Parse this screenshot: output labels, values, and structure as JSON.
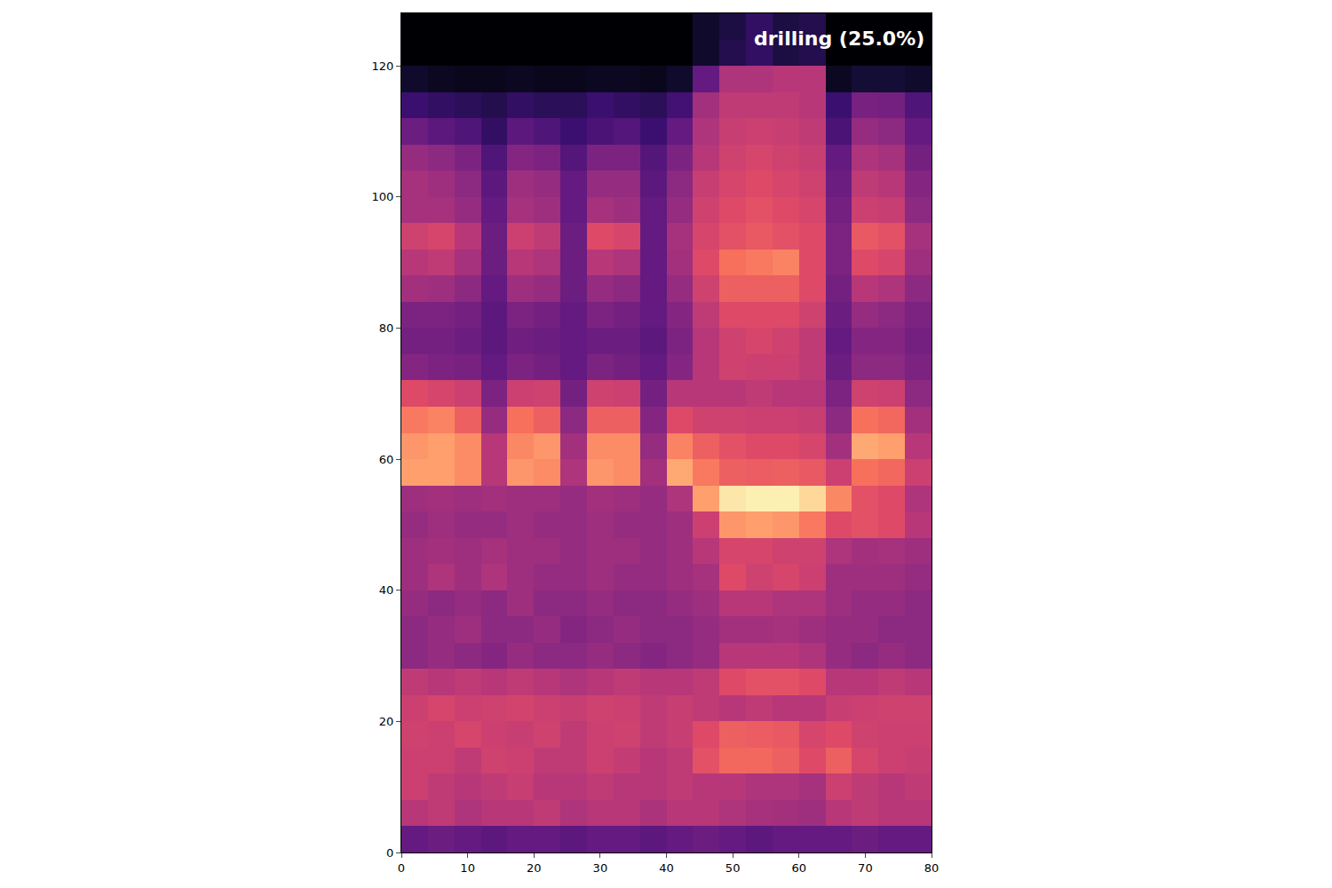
{
  "chart_data": {
    "type": "heatmap",
    "annotations": [
      {
        "text": "drilling (25.0%)"
      }
    ],
    "xlim": [
      0,
      80
    ],
    "ylim": [
      0,
      128
    ],
    "xticks": [
      0,
      10,
      20,
      30,
      40,
      50,
      60,
      70,
      80
    ],
    "yticks": [
      0,
      20,
      40,
      60,
      80,
      100,
      120
    ],
    "zlim": [
      0,
      1
    ],
    "x": [
      2,
      6,
      10,
      14,
      18,
      22,
      26,
      30,
      34,
      38,
      42,
      46,
      50,
      54,
      58,
      62,
      66,
      70,
      74,
      78
    ],
    "y": [
      2,
      6,
      10,
      14,
      18,
      22,
      26,
      30,
      34,
      38,
      42,
      46,
      50,
      54,
      58,
      62,
      66,
      70,
      74,
      78,
      82,
      86,
      90,
      94,
      98,
      102,
      106,
      110,
      114,
      118,
      122,
      126
    ],
    "z": [
      [
        0.3,
        0.32,
        0.3,
        0.28,
        0.3,
        0.3,
        0.28,
        0.3,
        0.3,
        0.28,
        0.3,
        0.32,
        0.3,
        0.28,
        0.3,
        0.3,
        0.3,
        0.32,
        0.3,
        0.3
      ],
      [
        0.5,
        0.52,
        0.48,
        0.5,
        0.5,
        0.52,
        0.48,
        0.5,
        0.5,
        0.47,
        0.5,
        0.5,
        0.48,
        0.46,
        0.45,
        0.44,
        0.5,
        0.52,
        0.5,
        0.5
      ],
      [
        0.55,
        0.52,
        0.5,
        0.52,
        0.54,
        0.5,
        0.5,
        0.52,
        0.5,
        0.5,
        0.52,
        0.5,
        0.5,
        0.48,
        0.48,
        0.46,
        0.55,
        0.52,
        0.5,
        0.52
      ],
      [
        0.55,
        0.55,
        0.52,
        0.56,
        0.55,
        0.52,
        0.52,
        0.55,
        0.53,
        0.5,
        0.52,
        0.62,
        0.68,
        0.68,
        0.66,
        0.6,
        0.66,
        0.58,
        0.55,
        0.54
      ],
      [
        0.56,
        0.55,
        0.58,
        0.55,
        0.54,
        0.56,
        0.52,
        0.55,
        0.56,
        0.52,
        0.54,
        0.6,
        0.66,
        0.65,
        0.64,
        0.58,
        0.6,
        0.56,
        0.55,
        0.55
      ],
      [
        0.55,
        0.58,
        0.55,
        0.56,
        0.57,
        0.55,
        0.54,
        0.56,
        0.55,
        0.52,
        0.54,
        0.52,
        0.5,
        0.52,
        0.5,
        0.5,
        0.54,
        0.55,
        0.56,
        0.56
      ],
      [
        0.52,
        0.5,
        0.52,
        0.5,
        0.52,
        0.5,
        0.48,
        0.5,
        0.52,
        0.5,
        0.5,
        0.52,
        0.6,
        0.62,
        0.62,
        0.6,
        0.5,
        0.5,
        0.52,
        0.5
      ],
      [
        0.4,
        0.42,
        0.4,
        0.38,
        0.42,
        0.4,
        0.4,
        0.42,
        0.4,
        0.38,
        0.4,
        0.42,
        0.5,
        0.5,
        0.5,
        0.48,
        0.42,
        0.4,
        0.42,
        0.4
      ],
      [
        0.4,
        0.42,
        0.44,
        0.4,
        0.4,
        0.42,
        0.38,
        0.4,
        0.42,
        0.4,
        0.4,
        0.42,
        0.45,
        0.45,
        0.46,
        0.44,
        0.42,
        0.42,
        0.4,
        0.4
      ],
      [
        0.42,
        0.4,
        0.42,
        0.4,
        0.44,
        0.4,
        0.4,
        0.42,
        0.4,
        0.4,
        0.42,
        0.44,
        0.5,
        0.5,
        0.48,
        0.48,
        0.44,
        0.42,
        0.42,
        0.4
      ],
      [
        0.44,
        0.48,
        0.44,
        0.48,
        0.44,
        0.42,
        0.42,
        0.44,
        0.42,
        0.42,
        0.44,
        0.46,
        0.6,
        0.56,
        0.58,
        0.55,
        0.44,
        0.44,
        0.44,
        0.42
      ],
      [
        0.44,
        0.45,
        0.44,
        0.46,
        0.44,
        0.44,
        0.42,
        0.44,
        0.44,
        0.42,
        0.44,
        0.5,
        0.58,
        0.58,
        0.56,
        0.56,
        0.48,
        0.45,
        0.46,
        0.44
      ],
      [
        0.42,
        0.44,
        0.42,
        0.42,
        0.44,
        0.42,
        0.42,
        0.44,
        0.42,
        0.42,
        0.44,
        0.55,
        0.78,
        0.8,
        0.78,
        0.72,
        0.6,
        0.62,
        0.6,
        0.5
      ],
      [
        0.44,
        0.45,
        0.44,
        0.45,
        0.44,
        0.44,
        0.42,
        0.45,
        0.44,
        0.42,
        0.48,
        0.8,
        0.95,
        0.97,
        0.97,
        0.92,
        0.75,
        0.62,
        0.6,
        0.48
      ],
      [
        0.8,
        0.8,
        0.76,
        0.5,
        0.78,
        0.76,
        0.48,
        0.78,
        0.76,
        0.45,
        0.82,
        0.72,
        0.66,
        0.65,
        0.66,
        0.64,
        0.55,
        0.7,
        0.68,
        0.55
      ],
      [
        0.78,
        0.8,
        0.76,
        0.5,
        0.75,
        0.78,
        0.45,
        0.76,
        0.76,
        0.42,
        0.74,
        0.66,
        0.62,
        0.6,
        0.6,
        0.58,
        0.45,
        0.82,
        0.8,
        0.5
      ],
      [
        0.72,
        0.74,
        0.66,
        0.42,
        0.7,
        0.66,
        0.4,
        0.66,
        0.66,
        0.38,
        0.6,
        0.56,
        0.56,
        0.55,
        0.55,
        0.54,
        0.4,
        0.7,
        0.68,
        0.45
      ],
      [
        0.6,
        0.58,
        0.55,
        0.36,
        0.55,
        0.56,
        0.34,
        0.56,
        0.55,
        0.34,
        0.5,
        0.5,
        0.5,
        0.52,
        0.5,
        0.5,
        0.36,
        0.56,
        0.55,
        0.4
      ],
      [
        0.38,
        0.36,
        0.35,
        0.3,
        0.36,
        0.34,
        0.3,
        0.36,
        0.34,
        0.3,
        0.38,
        0.5,
        0.56,
        0.55,
        0.55,
        0.52,
        0.32,
        0.4,
        0.4,
        0.36
      ],
      [
        0.34,
        0.34,
        0.32,
        0.28,
        0.33,
        0.32,
        0.3,
        0.32,
        0.32,
        0.28,
        0.36,
        0.5,
        0.56,
        0.58,
        0.56,
        0.52,
        0.3,
        0.38,
        0.38,
        0.34
      ],
      [
        0.36,
        0.36,
        0.34,
        0.28,
        0.36,
        0.34,
        0.3,
        0.36,
        0.34,
        0.3,
        0.38,
        0.52,
        0.6,
        0.6,
        0.6,
        0.56,
        0.32,
        0.42,
        0.4,
        0.36
      ],
      [
        0.45,
        0.44,
        0.4,
        0.3,
        0.44,
        0.42,
        0.32,
        0.42,
        0.4,
        0.3,
        0.42,
        0.56,
        0.66,
        0.66,
        0.66,
        0.6,
        0.34,
        0.5,
        0.48,
        0.4
      ],
      [
        0.5,
        0.52,
        0.46,
        0.32,
        0.5,
        0.48,
        0.32,
        0.5,
        0.48,
        0.3,
        0.45,
        0.6,
        0.7,
        0.72,
        0.74,
        0.6,
        0.36,
        0.6,
        0.58,
        0.44
      ],
      [
        0.56,
        0.58,
        0.5,
        0.32,
        0.55,
        0.52,
        0.32,
        0.6,
        0.58,
        0.3,
        0.46,
        0.58,
        0.62,
        0.64,
        0.62,
        0.6,
        0.36,
        0.64,
        0.62,
        0.46
      ],
      [
        0.46,
        0.46,
        0.42,
        0.3,
        0.46,
        0.44,
        0.3,
        0.46,
        0.44,
        0.3,
        0.42,
        0.56,
        0.6,
        0.62,
        0.6,
        0.58,
        0.34,
        0.55,
        0.54,
        0.4
      ],
      [
        0.46,
        0.44,
        0.4,
        0.28,
        0.44,
        0.42,
        0.3,
        0.42,
        0.42,
        0.28,
        0.4,
        0.54,
        0.58,
        0.6,
        0.58,
        0.56,
        0.32,
        0.52,
        0.5,
        0.38
      ],
      [
        0.42,
        0.4,
        0.36,
        0.25,
        0.38,
        0.36,
        0.26,
        0.36,
        0.36,
        0.26,
        0.36,
        0.5,
        0.56,
        0.58,
        0.56,
        0.54,
        0.3,
        0.48,
        0.46,
        0.34
      ],
      [
        0.32,
        0.28,
        0.25,
        0.18,
        0.28,
        0.25,
        0.2,
        0.24,
        0.26,
        0.2,
        0.3,
        0.48,
        0.54,
        0.55,
        0.54,
        0.52,
        0.24,
        0.42,
        0.4,
        0.3
      ],
      [
        0.2,
        0.18,
        0.16,
        0.14,
        0.18,
        0.16,
        0.16,
        0.2,
        0.18,
        0.16,
        0.22,
        0.45,
        0.52,
        0.52,
        0.52,
        0.5,
        0.2,
        0.35,
        0.34,
        0.25
      ],
      [
        0.08,
        0.06,
        0.05,
        0.05,
        0.06,
        0.05,
        0.05,
        0.06,
        0.06,
        0.05,
        0.08,
        0.3,
        0.48,
        0.48,
        0.5,
        0.5,
        0.06,
        0.1,
        0.1,
        0.08
      ],
      [
        0,
        0,
        0,
        0,
        0,
        0,
        0,
        0,
        0,
        0,
        0,
        0.08,
        0.14,
        0.18,
        0.12,
        0.14,
        0,
        0,
        0,
        0
      ],
      [
        0,
        0,
        0,
        0,
        0,
        0,
        0,
        0,
        0,
        0,
        0,
        0.08,
        0.12,
        0.18,
        0.12,
        0.14,
        0,
        0,
        0,
        0
      ]
    ]
  }
}
